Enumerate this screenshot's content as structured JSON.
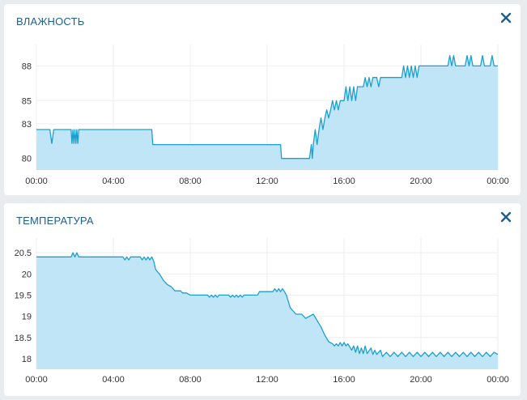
{
  "colors": {
    "line": "#1aa0d0",
    "fill": "#bfe5f6",
    "title": "#1e5f8e",
    "grid": "#eeeeee"
  },
  "charts": [
    {
      "title": "ВЛАЖНОСТЬ",
      "close_icon": "close-icon",
      "chart_data": {
        "type": "area",
        "xlabel": "",
        "ylabel": "",
        "x_ticks": [
          "00:00",
          "04:00",
          "08:00",
          "12:00",
          "16:00",
          "20:00",
          "00:00"
        ],
        "y_ticks": [
          "80",
          "83",
          "85",
          "88"
        ],
        "ylim": [
          79,
          89.5
        ],
        "xlim": [
          0,
          24
        ],
        "grid": true,
        "series": [
          {
            "values": [
              [
                0,
                82.5
              ],
              [
                0.7,
                82.5
              ],
              [
                0.8,
                81.3
              ],
              [
                0.9,
                82.5
              ],
              [
                1.8,
                82.5
              ],
              [
                1.85,
                81.3
              ],
              [
                1.9,
                82.5
              ],
              [
                1.95,
                81.3
              ],
              [
                2.0,
                82.5
              ],
              [
                2.05,
                81.3
              ],
              [
                2.1,
                82.5
              ],
              [
                2.15,
                81.3
              ],
              [
                2.2,
                82.5
              ],
              [
                6.0,
                82.5
              ],
              [
                6.05,
                81.2
              ],
              [
                12.7,
                81.2
              ],
              [
                12.75,
                80.0
              ],
              [
                14.2,
                80.0
              ],
              [
                14.3,
                81.2
              ],
              [
                14.35,
                80.0
              ],
              [
                14.4,
                81.2
              ],
              [
                14.5,
                82.5
              ],
              [
                14.6,
                81.2
              ],
              [
                14.7,
                82.5
              ],
              [
                14.8,
                83.5
              ],
              [
                14.9,
                82.5
              ],
              [
                15.0,
                83.5
              ],
              [
                15.1,
                84.2
              ],
              [
                15.2,
                83.5
              ],
              [
                15.3,
                84.2
              ],
              [
                15.4,
                85.0
              ],
              [
                15.5,
                84.2
              ],
              [
                15.6,
                85.0
              ],
              [
                15.7,
                84.2
              ],
              [
                15.8,
                85.0
              ],
              [
                16.0,
                85.0
              ],
              [
                16.1,
                86.2
              ],
              [
                16.2,
                85.0
              ],
              [
                16.3,
                86.2
              ],
              [
                16.4,
                85.0
              ],
              [
                16.5,
                86.2
              ],
              [
                16.6,
                85.0
              ],
              [
                16.7,
                86.2
              ],
              [
                16.8,
                86.2
              ],
              [
                17.0,
                86.2
              ],
              [
                17.1,
                87.0
              ],
              [
                17.2,
                86.2
              ],
              [
                17.3,
                87.0
              ],
              [
                17.4,
                86.2
              ],
              [
                17.5,
                87.0
              ],
              [
                17.6,
                87.0
              ],
              [
                17.7,
                87.0
              ],
              [
                17.8,
                86.2
              ],
              [
                17.9,
                87.0
              ],
              [
                18.0,
                87.0
              ],
              [
                18.1,
                87.0
              ],
              [
                18.2,
                87.0
              ],
              [
                19.0,
                87.0
              ],
              [
                19.1,
                88.0
              ],
              [
                19.2,
                87.0
              ],
              [
                19.3,
                88.0
              ],
              [
                19.4,
                87.0
              ],
              [
                19.5,
                88.0
              ],
              [
                19.6,
                87.0
              ],
              [
                19.7,
                88.0
              ],
              [
                19.8,
                87.0
              ],
              [
                19.9,
                88.0
              ],
              [
                20.0,
                88.0
              ],
              [
                21.4,
                88.0
              ],
              [
                21.5,
                88.9
              ],
              [
                21.6,
                88.0
              ],
              [
                21.7,
                88.9
              ],
              [
                21.8,
                88.0
              ],
              [
                22.3,
                88.0
              ],
              [
                22.4,
                88.9
              ],
              [
                22.5,
                88.0
              ],
              [
                22.6,
                88.9
              ],
              [
                22.7,
                88.0
              ],
              [
                23.1,
                88.0
              ],
              [
                23.2,
                88.9
              ],
              [
                23.3,
                88.0
              ],
              [
                23.6,
                88.0
              ],
              [
                23.7,
                88.9
              ],
              [
                23.8,
                88.0
              ],
              [
                23.9,
                88.0
              ],
              [
                24,
                88.0
              ]
            ]
          }
        ]
      }
    },
    {
      "title": "ТЕМПЕРАТУРА",
      "close_icon": "close-icon",
      "chart_data": {
        "type": "area",
        "xlabel": "",
        "ylabel": "",
        "x_ticks": [
          "00:00",
          "04:00",
          "08:00",
          "12:00",
          "16:00",
          "20:00",
          "00:00"
        ],
        "y_ticks": [
          "18",
          "18.5",
          "19",
          "19.5",
          "20",
          "20.5"
        ],
        "ylim": [
          17.75,
          20.75
        ],
        "xlim": [
          0,
          24
        ],
        "grid": true,
        "series": [
          {
            "values": [
              [
                0,
                20.4
              ],
              [
                1.8,
                20.4
              ],
              [
                1.9,
                20.5
              ],
              [
                2.0,
                20.4
              ],
              [
                2.1,
                20.5
              ],
              [
                2.2,
                20.4
              ],
              [
                4.5,
                20.4
              ],
              [
                4.6,
                20.33
              ],
              [
                4.7,
                20.4
              ],
              [
                4.8,
                20.33
              ],
              [
                4.9,
                20.4
              ],
              [
                5.4,
                20.4
              ],
              [
                5.5,
                20.33
              ],
              [
                5.6,
                20.4
              ],
              [
                5.7,
                20.33
              ],
              [
                5.8,
                20.4
              ],
              [
                5.9,
                20.33
              ],
              [
                6.0,
                20.4
              ],
              [
                6.1,
                20.3
              ],
              [
                6.2,
                20.1
              ],
              [
                6.4,
                20.0
              ],
              [
                6.6,
                19.85
              ],
              [
                6.8,
                19.75
              ],
              [
                7.0,
                19.7
              ],
              [
                7.2,
                19.6
              ],
              [
                7.5,
                19.6
              ],
              [
                7.6,
                19.55
              ],
              [
                7.8,
                19.55
              ],
              [
                8.0,
                19.5
              ],
              [
                8.9,
                19.5
              ],
              [
                9.0,
                19.45
              ],
              [
                9.1,
                19.5
              ],
              [
                9.2,
                19.45
              ],
              [
                9.3,
                19.5
              ],
              [
                9.4,
                19.45
              ],
              [
                9.5,
                19.5
              ],
              [
                10.0,
                19.5
              ],
              [
                10.1,
                19.45
              ],
              [
                10.2,
                19.5
              ],
              [
                10.3,
                19.45
              ],
              [
                10.4,
                19.5
              ],
              [
                10.5,
                19.45
              ],
              [
                10.6,
                19.5
              ],
              [
                10.7,
                19.45
              ],
              [
                10.8,
                19.5
              ],
              [
                11.5,
                19.5
              ],
              [
                11.6,
                19.58
              ],
              [
                12.3,
                19.58
              ],
              [
                12.4,
                19.65
              ],
              [
                12.5,
                19.58
              ],
              [
                12.6,
                19.65
              ],
              [
                12.7,
                19.58
              ],
              [
                12.8,
                19.65
              ],
              [
                12.9,
                19.58
              ],
              [
                13.0,
                19.5
              ],
              [
                13.2,
                19.2
              ],
              [
                13.5,
                19.05
              ],
              [
                13.8,
                19.05
              ],
              [
                14.0,
                18.95
              ],
              [
                14.2,
                19.0
              ],
              [
                14.4,
                19.05
              ],
              [
                14.6,
                18.9
              ],
              [
                14.8,
                18.75
              ],
              [
                15.0,
                18.55
              ],
              [
                15.2,
                18.4
              ],
              [
                15.4,
                18.35
              ],
              [
                15.5,
                18.3
              ],
              [
                15.6,
                18.35
              ],
              [
                15.7,
                18.3
              ],
              [
                15.8,
                18.38
              ],
              [
                15.9,
                18.3
              ],
              [
                16.0,
                18.38
              ],
              [
                16.1,
                18.3
              ],
              [
                16.2,
                18.35
              ],
              [
                16.4,
                18.2
              ],
              [
                16.5,
                18.3
              ],
              [
                16.6,
                18.15
              ],
              [
                16.7,
                18.3
              ],
              [
                16.8,
                18.12
              ],
              [
                16.9,
                18.25
              ],
              [
                17.0,
                18.12
              ],
              [
                17.1,
                18.3
              ],
              [
                17.2,
                18.12
              ],
              [
                17.4,
                18.25
              ],
              [
                17.5,
                18.1
              ],
              [
                17.6,
                18.2
              ],
              [
                17.7,
                18.1
              ],
              [
                17.9,
                18.2
              ],
              [
                18.0,
                18.05
              ],
              [
                18.2,
                18.15
              ],
              [
                18.4,
                18.05
              ],
              [
                18.6,
                18.15
              ],
              [
                18.8,
                18.05
              ],
              [
                19.0,
                18.15
              ],
              [
                19.2,
                18.05
              ],
              [
                19.4,
                18.15
              ],
              [
                19.6,
                18.05
              ],
              [
                19.8,
                18.15
              ],
              [
                20.0,
                18.05
              ],
              [
                20.2,
                18.15
              ],
              [
                20.4,
                18.05
              ],
              [
                20.6,
                18.15
              ],
              [
                20.8,
                18.05
              ],
              [
                21.0,
                18.15
              ],
              [
                21.2,
                18.05
              ],
              [
                21.4,
                18.15
              ],
              [
                21.6,
                18.05
              ],
              [
                21.8,
                18.15
              ],
              [
                22.0,
                18.05
              ],
              [
                22.2,
                18.15
              ],
              [
                22.4,
                18.05
              ],
              [
                22.6,
                18.15
              ],
              [
                22.8,
                18.05
              ],
              [
                23.0,
                18.15
              ],
              [
                23.2,
                18.05
              ],
              [
                23.4,
                18.15
              ],
              [
                23.6,
                18.05
              ],
              [
                23.8,
                18.15
              ],
              [
                24,
                18.1
              ]
            ]
          }
        ]
      }
    }
  ]
}
